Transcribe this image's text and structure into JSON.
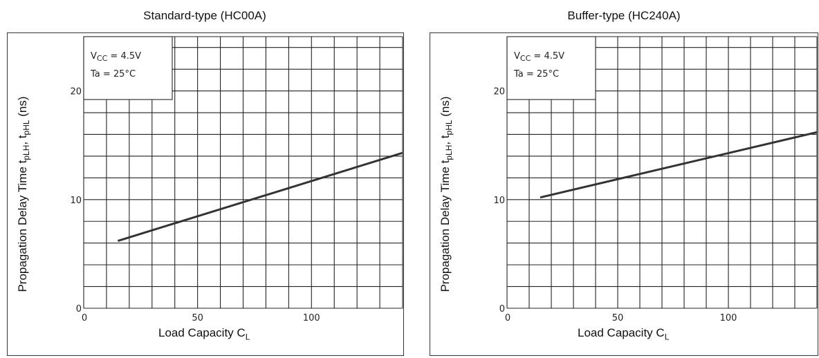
{
  "charts": [
    {
      "id": "standard",
      "panel_title": "Standard-type (HC00A)",
      "ylabel_main": "Propagation Delay Time t",
      "ylabel_sub1": "pLH",
      "ylabel_sep": ", t",
      "ylabel_sub2": "pHL",
      "ylabel_unit": " (ns)",
      "xlabel_main": "Load Capacity C",
      "xlabel_sub": "L",
      "legend_line1_main": "V",
      "legend_line1_sub": "CC",
      "legend_line1_rest": " = 4.5V",
      "legend_line2": "Ta = 25°C"
    },
    {
      "id": "buffer",
      "panel_title": "Buffer-type (HC240A)",
      "ylabel_main": "Propagation Delay Time t",
      "ylabel_sub1": "pLH",
      "ylabel_sep": ", t",
      "ylabel_sub2": "pHL",
      "ylabel_unit": " (ns)",
      "xlabel_main": "Load Capacity C",
      "xlabel_sub": "L",
      "legend_line1_main": "V",
      "legend_line1_sub": "CC",
      "legend_line1_rest": " = 4.5V",
      "legend_line2": "Ta = 25°C"
    }
  ],
  "chart_data": [
    {
      "type": "line",
      "title": "Standard-type (HC00A)",
      "xlabel": "Load Capacity CL",
      "ylabel": "Propagation Delay Time tpLH, tpHL (ns)",
      "xlim": [
        0,
        140
      ],
      "ylim": [
        0,
        25
      ],
      "xticks": [
        0,
        50,
        100
      ],
      "yticks": [
        0,
        10,
        20
      ],
      "grid": true,
      "annotation": [
        "VCC = 4.5V",
        "Ta = 25°C"
      ],
      "series": [
        {
          "x": [
            15,
            140
          ],
          "y": [
            6.2,
            14.3
          ]
        }
      ]
    },
    {
      "type": "line",
      "title": "Buffer-type (HC240A)",
      "xlabel": "Load Capacity CL",
      "ylabel": "Propagation Delay Time tpLH, tpHL (ns)",
      "xlim": [
        0,
        140
      ],
      "ylim": [
        0,
        25
      ],
      "xticks": [
        0,
        50,
        100
      ],
      "yticks": [
        0,
        10,
        20
      ],
      "grid": true,
      "annotation": [
        "VCC = 4.5V",
        "Ta = 25°C"
      ],
      "series": [
        {
          "x": [
            15,
            140
          ],
          "y": [
            10.2,
            16.2
          ]
        }
      ]
    }
  ]
}
